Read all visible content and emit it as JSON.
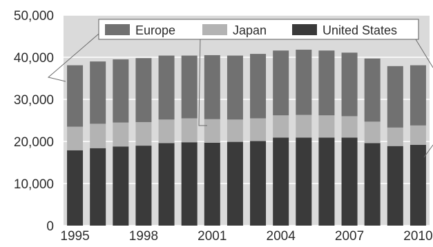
{
  "chart_data": {
    "type": "bar",
    "stacked": true,
    "title": "",
    "xlabel": "",
    "ylabel": "",
    "categories": [
      "1995",
      "1996",
      "1997",
      "1998",
      "1999",
      "2000",
      "2001",
      "2002",
      "2003",
      "2004",
      "2005",
      "2006",
      "2007",
      "2008",
      "2009",
      "2010"
    ],
    "x_tick_labels": [
      "1995",
      "1998",
      "2001",
      "2004",
      "2007",
      "2010"
    ],
    "y_tick_labels": [
      "0",
      "10,000",
      "20,000",
      "30,000",
      "40,000",
      "50,000"
    ],
    "ylim": [
      0,
      50000
    ],
    "grid": true,
    "legend_position": "top",
    "series": [
      {
        "name": "United States",
        "color": "#3a3a3a",
        "values": [
          17900,
          18400,
          18800,
          19000,
          19600,
          19800,
          19700,
          19900,
          20100,
          20900,
          20900,
          20900,
          20900,
          19600,
          18900,
          19200
        ]
      },
      {
        "name": "Japan",
        "color": "#b3b3b3",
        "values": [
          5600,
          5800,
          5700,
          5600,
          5600,
          5700,
          5600,
          5300,
          5400,
          5300,
          5400,
          5300,
          5100,
          5100,
          4400,
          4600
        ]
      },
      {
        "name": "Europe",
        "color": "#717171",
        "values": [
          14600,
          14800,
          15000,
          15200,
          15200,
          14900,
          15200,
          15200,
          15300,
          15400,
          15500,
          15400,
          15100,
          15000,
          14600,
          14300
        ]
      }
    ],
    "legend_order": [
      "Europe",
      "Japan",
      "United States"
    ],
    "plot_background": "#dadada",
    "gridline_color": "#ffffff"
  }
}
